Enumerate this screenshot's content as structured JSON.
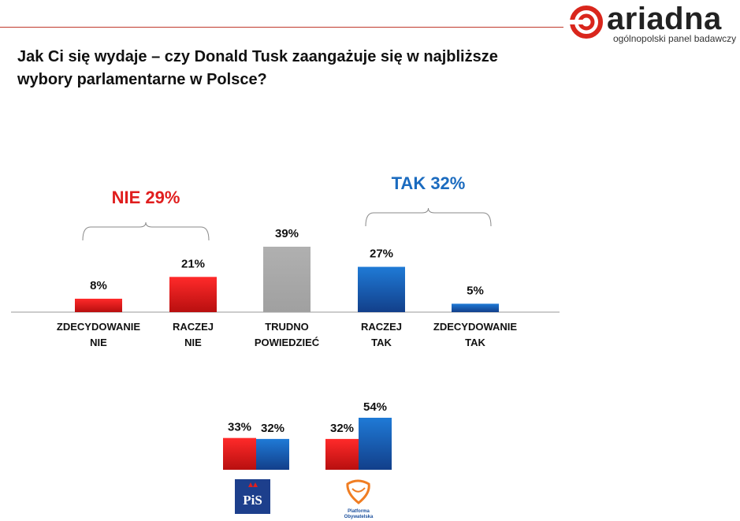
{
  "logo": {
    "name": "ariadna",
    "tagline": "ogólnopolski panel badawczy",
    "colors": {
      "ring": "#d9261c"
    }
  },
  "question": "Jak Ci się wydaje – czy Donald Tusk zaangażuje się w najbliższe wybory parlamentarne w Polsce?",
  "chart_data": [
    {
      "type": "bar",
      "title": "Jak Ci się wydaje – czy Donald Tusk zaangażuje się w najbliższe wybory parlamentarne w Polsce?",
      "categories": [
        [
          "ZDECYDOWANIE",
          "NIE"
        ],
        [
          "RACZEJ",
          "NIE"
        ],
        [
          "TRUDNO",
          "POWIEDZIEĆ"
        ],
        [
          "RACZEJ",
          "TAK"
        ],
        [
          "ZDECYDOWANIE",
          "TAK"
        ]
      ],
      "values": [
        8,
        21,
        39,
        27,
        5
      ],
      "labels": [
        "8%",
        "21%",
        "39%",
        "27%",
        "5%"
      ],
      "colors": [
        "#e01e1e",
        "#e01e1e",
        "#a6a6a6",
        "#1b6bbf",
        "#1b6bbf"
      ],
      "groups": [
        {
          "label": "NIE 29%",
          "color": "#e01e1e",
          "categories": [
            0,
            1
          ]
        },
        {
          "label": "TAK 32%",
          "color": "#1b6bbf",
          "categories": [
            3,
            4
          ]
        }
      ],
      "ylim": [
        0,
        39
      ]
    },
    {
      "type": "bar",
      "subgroups": [
        {
          "party": "PiS",
          "series": [
            {
              "name": "NIE",
              "value": 33,
              "label": "33%"
            },
            {
              "name": "TAK",
              "value": 32,
              "label": "32%"
            }
          ]
        },
        {
          "party": "Platforma Obywatelska",
          "series": [
            {
              "name": "NIE",
              "value": 32,
              "label": "32%"
            },
            {
              "name": "TAK",
              "value": 54,
              "label": "54%"
            }
          ]
        }
      ],
      "colors": {
        "NIE": "#e01e1e",
        "TAK": "#1b6bbf"
      },
      "ylim": [
        0,
        54
      ]
    }
  ],
  "party_logos": {
    "pis": {
      "text": "PiS"
    },
    "po": {
      "text_line1": "Platforma",
      "text_line2": "Obywatelska"
    }
  }
}
